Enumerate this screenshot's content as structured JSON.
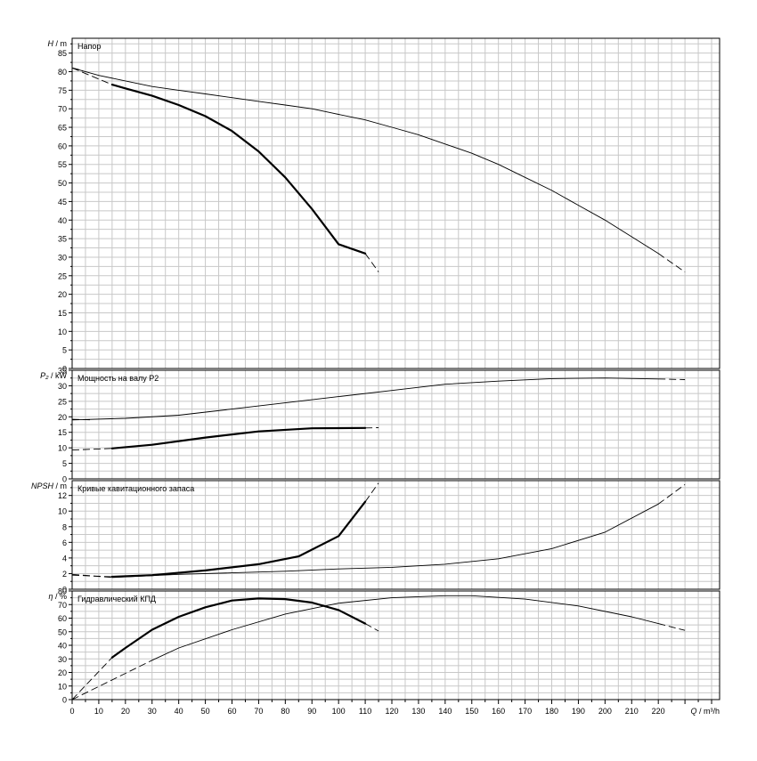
{
  "chart_data": {
    "type": "line",
    "x_axis": {
      "label_prefix": "Q",
      "label_unit": "m³/h",
      "range": [
        0,
        243
      ],
      "ticks": [
        0,
        10,
        20,
        30,
        40,
        50,
        60,
        70,
        80,
        90,
        100,
        110,
        120,
        130,
        140,
        150,
        160,
        170,
        180,
        190,
        200,
        210,
        220
      ]
    },
    "grid": true,
    "panels": [
      {
        "id": "head",
        "title": "Напор",
        "ylabel_symbol": "H",
        "ylabel_unit": "m",
        "ylim": [
          0,
          89
        ],
        "ytick_step": 5,
        "series": [
          {
            "weight": "thin",
            "solid": [
              [
                0,
                81
              ],
              [
                10,
                79
              ],
              [
                20,
                77.5
              ],
              [
                30,
                76
              ],
              [
                40,
                75
              ],
              [
                50,
                74
              ],
              [
                60,
                73
              ],
              [
                70,
                72
              ],
              [
                80,
                71
              ],
              [
                90,
                70
              ],
              [
                100,
                68.5
              ],
              [
                110,
                67
              ],
              [
                120,
                65
              ],
              [
                130,
                63
              ],
              [
                140,
                60.5
              ],
              [
                150,
                58
              ],
              [
                160,
                55
              ],
              [
                170,
                51.5
              ],
              [
                180,
                48
              ],
              [
                190,
                44
              ],
              [
                200,
                40
              ],
              [
                210,
                35.5
              ],
              [
                220,
                31
              ]
            ],
            "dash_start": [
              [
                0,
                81
              ],
              [
                4,
                80.3
              ]
            ],
            "dash_end": [
              [
                220,
                31
              ],
              [
                230,
                26
              ]
            ]
          },
          {
            "weight": "thick",
            "solid": [
              [
                15,
                76.5
              ],
              [
                20,
                75.5
              ],
              [
                30,
                73.5
              ],
              [
                40,
                71
              ],
              [
                50,
                68
              ],
              [
                60,
                64
              ],
              [
                70,
                58.5
              ],
              [
                80,
                51.5
              ],
              [
                90,
                43
              ],
              [
                100,
                33.5
              ],
              [
                110,
                31
              ]
            ],
            "dash_start": [
              [
                0,
                81
              ],
              [
                15,
                76.5
              ]
            ],
            "dash_end": [
              [
                110,
                31
              ],
              [
                115,
                26
              ]
            ]
          }
        ]
      },
      {
        "id": "power",
        "title": "Мощность на валу P2",
        "ylabel_symbol": "P₂",
        "ylabel_unit": "kW",
        "ylim": [
          0,
          35
        ],
        "ytick_step": 5,
        "series": [
          {
            "weight": "thin",
            "solid": [
              [
                0,
                19
              ],
              [
                20,
                19.5
              ],
              [
                40,
                20.5
              ],
              [
                60,
                22.5
              ],
              [
                80,
                24.5
              ],
              [
                100,
                26.5
              ],
              [
                120,
                28.5
              ],
              [
                140,
                30.5
              ],
              [
                160,
                31.5
              ],
              [
                180,
                32.3
              ],
              [
                200,
                32.5
              ],
              [
                220,
                32.2
              ]
            ],
            "dash_start": [
              [
                0,
                19.2
              ],
              [
                8,
                19
              ]
            ],
            "dash_end": [
              [
                220,
                32.2
              ],
              [
                230,
                32
              ]
            ]
          },
          {
            "weight": "thick",
            "solid": [
              [
                15,
                9.8
              ],
              [
                30,
                11
              ],
              [
                50,
                13.3
              ],
              [
                70,
                15.3
              ],
              [
                90,
                16.3
              ],
              [
                110,
                16.4
              ]
            ],
            "dash_start": [
              [
                0,
                9.3
              ],
              [
                15,
                9.8
              ]
            ],
            "dash_end": [
              [
                110,
                16.4
              ],
              [
                115,
                16.5
              ]
            ]
          }
        ]
      },
      {
        "id": "npsh",
        "title": "Кривые кавитационного запаса",
        "ylabel_symbol": "NPSH",
        "ylabel_unit": "m",
        "ylim": [
          0,
          13.9
        ],
        "ytick_step": 2,
        "series": [
          {
            "weight": "thin",
            "solid": [
              [
                15,
                1.5
              ],
              [
                40,
                1.9
              ],
              [
                60,
                2.1
              ],
              [
                80,
                2.3
              ],
              [
                100,
                2.6
              ],
              [
                120,
                2.8
              ],
              [
                140,
                3.2
              ],
              [
                160,
                3.9
              ],
              [
                180,
                5.2
              ],
              [
                200,
                7.3
              ],
              [
                220,
                10.9
              ]
            ],
            "dash_start": [
              [
                0,
                1.9
              ],
              [
                15,
                1.5
              ]
            ],
            "dash_end": [
              [
                220,
                10.9
              ],
              [
                230,
                13.4
              ]
            ]
          },
          {
            "weight": "thick",
            "solid": [
              [
                15,
                1.6
              ],
              [
                30,
                1.8
              ],
              [
                50,
                2.4
              ],
              [
                70,
                3.2
              ],
              [
                85,
                4.2
              ],
              [
                100,
                6.8
              ],
              [
                110,
                11.2
              ]
            ],
            "dash_start": [
              [
                0,
                1.8
              ],
              [
                15,
                1.6
              ]
            ],
            "dash_end": [
              [
                110,
                11.2
              ],
              [
                115,
                13.6
              ]
            ]
          }
        ]
      },
      {
        "id": "efficiency",
        "title": "Гидравлический КПД",
        "ylabel_symbol": "η",
        "ylabel_unit": "%",
        "ylim": [
          0,
          80
        ],
        "ytick_step": 10,
        "series": [
          {
            "weight": "thin",
            "solid": [
              [
                30,
                29
              ],
              [
                40,
                38
              ],
              [
                60,
                51.5
              ],
              [
                80,
                63
              ],
              [
                100,
                71
              ],
              [
                120,
                75
              ],
              [
                140,
                76.5
              ],
              [
                150,
                76.5
              ],
              [
                170,
                74
              ],
              [
                190,
                69
              ],
              [
                210,
                61
              ],
              [
                220,
                56
              ]
            ],
            "dash_start": [
              [
                0,
                0
              ],
              [
                30,
                29
              ]
            ],
            "dash_end": [
              [
                220,
                56
              ],
              [
                230,
                51
              ]
            ]
          },
          {
            "weight": "thick",
            "solid": [
              [
                15,
                31
              ],
              [
                20,
                38
              ],
              [
                30,
                51.5
              ],
              [
                40,
                61
              ],
              [
                50,
                68
              ],
              [
                60,
                73
              ],
              [
                70,
                74.5
              ],
              [
                80,
                74
              ],
              [
                90,
                71.5
              ],
              [
                100,
                66
              ],
              [
                110,
                56
              ]
            ],
            "dash_start": [
              [
                0,
                0
              ],
              [
                15,
                31
              ]
            ],
            "dash_end": [
              [
                110,
                56
              ],
              [
                115,
                50.5
              ]
            ]
          }
        ]
      }
    ]
  }
}
